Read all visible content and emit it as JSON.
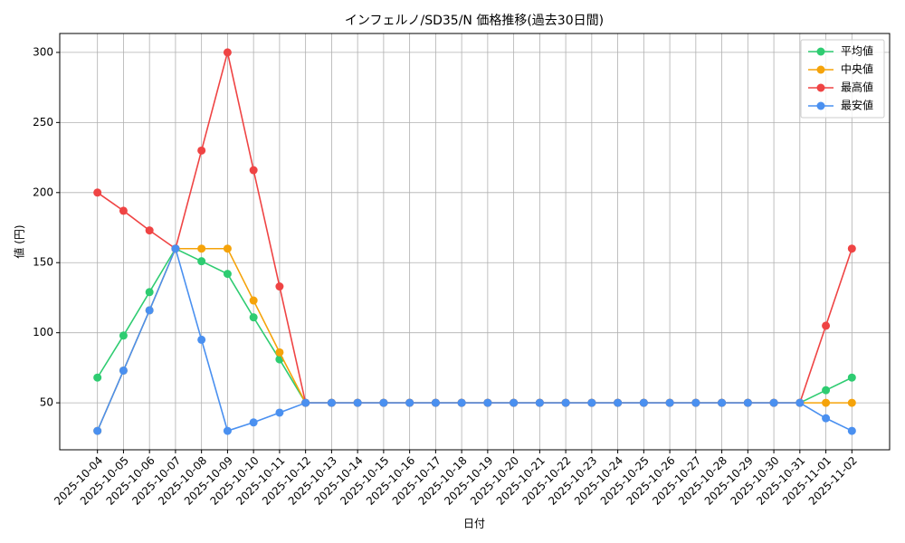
{
  "chart_data": {
    "type": "line",
    "title": "インフェルノ/SD35/N 価格推移(過去30日間)",
    "x_label": "日付",
    "y_label": "値 (円)",
    "categories": [
      "2025-10-04",
      "2025-10-05",
      "2025-10-06",
      "2025-10-07",
      "2025-10-08",
      "2025-10-09",
      "2025-10-10",
      "2025-10-11",
      "2025-10-12",
      "2025-10-13",
      "2025-10-14",
      "2025-10-15",
      "2025-10-16",
      "2025-10-17",
      "2025-10-18",
      "2025-10-19",
      "2025-10-20",
      "2025-10-21",
      "2025-10-22",
      "2025-10-23",
      "2025-10-24",
      "2025-10-25",
      "2025-10-26",
      "2025-10-27",
      "2025-10-28",
      "2025-10-29",
      "2025-10-30",
      "2025-10-31",
      "2025-11-01",
      "2025-11-02"
    ],
    "series": [
      {
        "name": "平均値",
        "color": "#2ecc71",
        "values": [
          68,
          98,
          129,
          160,
          151,
          142,
          111,
          81,
          50,
          50,
          50,
          50,
          50,
          50,
          50,
          50,
          50,
          50,
          50,
          50,
          50,
          50,
          50,
          50,
          50,
          50,
          50,
          50,
          59,
          68
        ]
      },
      {
        "name": "中央値",
        "color": "#f5a30a",
        "values": [
          30,
          73,
          116,
          160,
          160,
          160,
          123,
          86,
          50,
          50,
          50,
          50,
          50,
          50,
          50,
          50,
          50,
          50,
          50,
          50,
          50,
          50,
          50,
          50,
          50,
          50,
          50,
          50,
          50,
          50
        ]
      },
      {
        "name": "最高値",
        "color": "#ef4444",
        "values": [
          200,
          187,
          173,
          160,
          230,
          300,
          216,
          133,
          50,
          50,
          50,
          50,
          50,
          50,
          50,
          50,
          50,
          50,
          50,
          50,
          50,
          50,
          50,
          50,
          50,
          50,
          50,
          50,
          105,
          160
        ]
      },
      {
        "name": "最安値",
        "color": "#4a90f0",
        "values": [
          30,
          73,
          116,
          160,
          95,
          30,
          36,
          43,
          50,
          50,
          50,
          50,
          50,
          50,
          50,
          50,
          50,
          50,
          50,
          50,
          50,
          50,
          50,
          50,
          50,
          50,
          50,
          50,
          39,
          30
        ]
      }
    ],
    "ylim": [
      16.5,
      313.5
    ],
    "yticks": [
      50,
      100,
      150,
      200,
      250,
      300
    ],
    "grid": true,
    "legend": "upper right"
  }
}
